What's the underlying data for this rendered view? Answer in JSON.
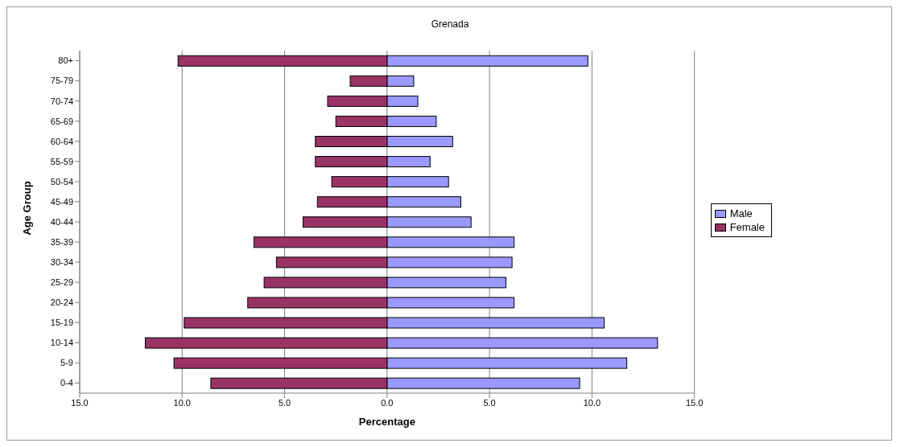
{
  "chart_data": {
    "type": "bar",
    "orientation": "horizontal",
    "stacked": true,
    "title": "Grenada",
    "xlabel": "Percentage",
    "ylabel": "Age Group",
    "categories": [
      "80+",
      "75-79",
      "70-74",
      "65-69",
      "60-64",
      "55-59",
      "50-54",
      "45-49",
      "40-44",
      "35-39",
      "30-34",
      "25-29",
      "20-24",
      "15-19",
      "10-14",
      "5-9",
      "0-4"
    ],
    "series": [
      {
        "name": "Male",
        "color": "#9999ff",
        "values": [
          9.8,
          1.3,
          1.5,
          2.4,
          3.2,
          2.1,
          3.0,
          3.6,
          4.1,
          6.2,
          6.1,
          5.8,
          6.2,
          10.6,
          13.2,
          11.7,
          9.4
        ]
      },
      {
        "name": "Female",
        "color": "#993366",
        "values": [
          -10.2,
          -1.8,
          -2.9,
          -2.5,
          -3.5,
          -3.5,
          -2.7,
          -3.4,
          -4.1,
          -6.5,
          -5.4,
          -6.0,
          -6.8,
          -9.9,
          -11.8,
          -10.4,
          -8.6
        ]
      }
    ],
    "xlim": [
      -15,
      15
    ],
    "xticks": [
      {
        "value": -15,
        "label": "15.0"
      },
      {
        "value": -10,
        "label": "10.0"
      },
      {
        "value": -5,
        "label": "5.0"
      },
      {
        "value": 0,
        "label": "0.0"
      },
      {
        "value": 5,
        "label": "5.0"
      },
      {
        "value": 10,
        "label": "10.0"
      },
      {
        "value": 15,
        "label": "15.0"
      }
    ],
    "grid": "x",
    "legend": "right"
  }
}
